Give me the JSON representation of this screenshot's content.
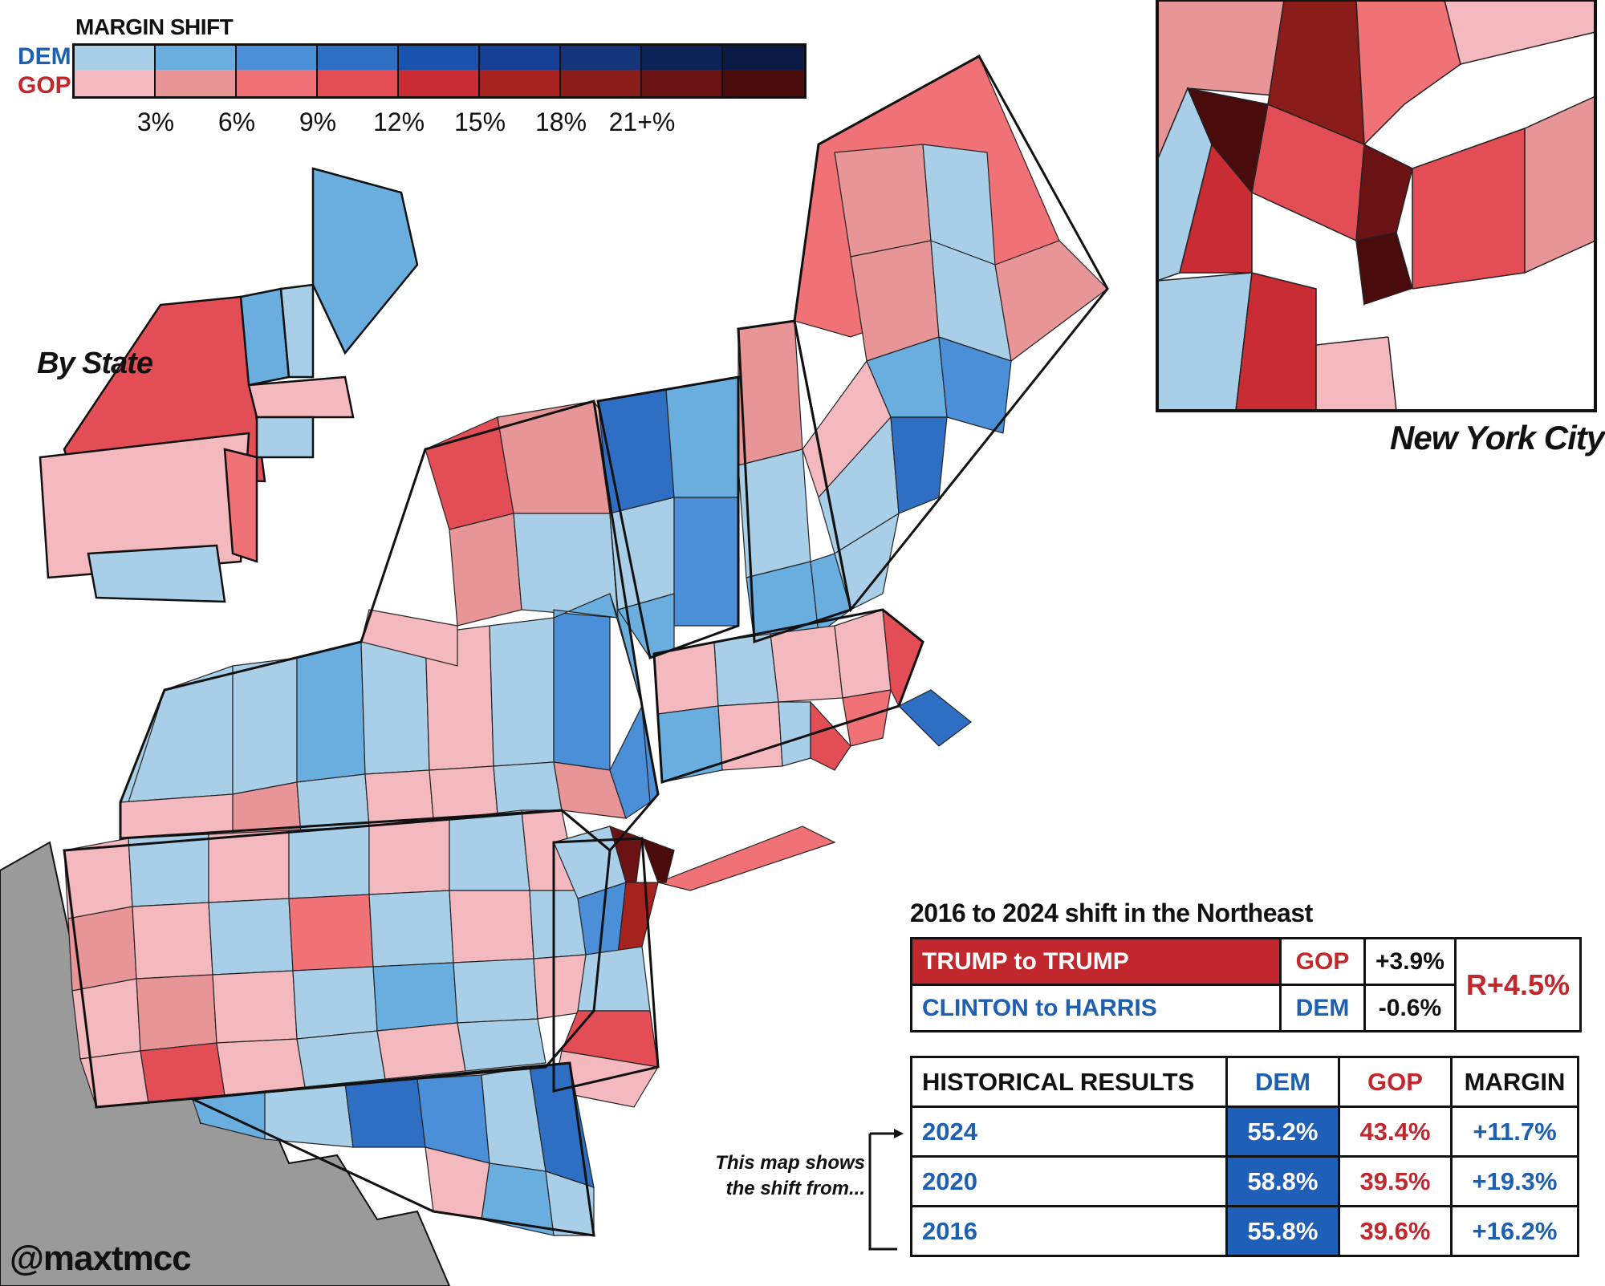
{
  "legend": {
    "title": "MARGIN SHIFT",
    "dem_label": "DEM",
    "gop_label": "GOP",
    "dem_colors": [
      "#a9cfe8",
      "#6aaedf",
      "#4a8fd8",
      "#2e6fc4",
      "#1a53ad",
      "#163f95",
      "#15347a",
      "#0d2458",
      "#0a1a45"
    ],
    "gop_colors": [
      "#f4b9bf",
      "#e79596",
      "#f07277",
      "#e34d55",
      "#c92d33",
      "#a5221f",
      "#8a1c19",
      "#6b1314",
      "#4a0b0d"
    ],
    "ticks": [
      "3%",
      "6%",
      "9%",
      "12%",
      "15%",
      "18%",
      "21+%"
    ]
  },
  "insets": {
    "by_state": "By State",
    "nyc": "New York City"
  },
  "shift": {
    "title": "2016 to 2024 shift in the Northeast",
    "rows": [
      {
        "label": "TRUMP to TRUMP",
        "party": "GOP",
        "value": "+3.9%"
      },
      {
        "label": "CLINTON to HARRIS",
        "party": "DEM",
        "value": "-0.6%"
      }
    ],
    "total": "R+4.5%"
  },
  "historical": {
    "header": {
      "label": "HISTORICAL RESULTS",
      "dem": "DEM",
      "gop": "GOP",
      "margin": "MARGIN"
    },
    "rows": [
      {
        "year": "2024",
        "dem": "55.2%",
        "gop": "43.4%",
        "margin": "+11.7%"
      },
      {
        "year": "2020",
        "dem": "58.8%",
        "gop": "39.5%",
        "margin": "+19.3%"
      },
      {
        "year": "2016",
        "dem": "55.8%",
        "gop": "39.6%",
        "margin": "+16.2%"
      }
    ]
  },
  "note": "This map shows the shift from...",
  "credit": "@maxtmcc"
}
